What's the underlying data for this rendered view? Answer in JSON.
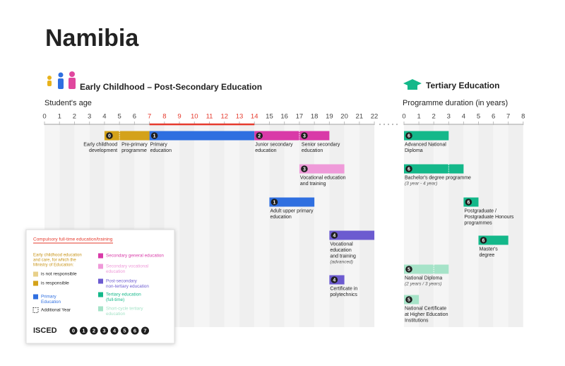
{
  "title": "Namibia",
  "left": {
    "header": "Early Childhood – Post-Secondary Education",
    "axis_label": "Student's age",
    "ages": [
      0,
      1,
      2,
      3,
      4,
      5,
      6,
      7,
      8,
      9,
      10,
      11,
      12,
      13,
      14,
      15,
      16,
      17,
      18,
      19,
      20,
      21,
      22
    ],
    "compulsory": [
      7,
      14
    ],
    "compulsory_color": "#e63b2e",
    "programmes": [
      {
        "isced": 0,
        "label": [
          "Early childhood",
          "development"
        ],
        "start": 4,
        "end": 5,
        "color": "#d4a21a"
      },
      {
        "label": [
          "Pre-primary",
          "programme"
        ],
        "start": 5,
        "end": 7,
        "color": "#d4a21a"
      },
      {
        "isced": 1,
        "label": [
          "Primary",
          "education"
        ],
        "start": 7,
        "end": 14,
        "color": "#2f6fe0"
      },
      {
        "isced": 2,
        "label": [
          "Junior secondary",
          "education"
        ],
        "start": 14,
        "end": 17,
        "color": "#d93aa8"
      },
      {
        "isced": 3,
        "label": [
          "Senior secondary",
          "education"
        ],
        "start": 17,
        "end": 19,
        "color": "#d93aa8"
      },
      {
        "isced": 3,
        "label": [
          "Vocational education",
          "and training"
        ],
        "start": 17,
        "end": 20,
        "color": "#ef9ad9"
      },
      {
        "isced": 1,
        "label": [
          "Adult upper primary",
          "education"
        ],
        "start": 15,
        "end": 18,
        "color": "#2f6fe0"
      },
      {
        "isced": 4,
        "label": [
          "Vocational",
          "education",
          "and training"
        ],
        "note": "(advanced)",
        "start": 19,
        "end": 22,
        "color": "#6c5bd0"
      },
      {
        "isced": 4,
        "label": [
          "Certificate in",
          "polytechnics"
        ],
        "start": 19,
        "end": 20,
        "color": "#6c5bd0"
      }
    ]
  },
  "right": {
    "header": "Tertiary Education",
    "axis_label": "Programme duration (in years)",
    "years": [
      0,
      1,
      2,
      3,
      4,
      5,
      6,
      7,
      8
    ],
    "programmes": [
      {
        "isced": 6,
        "label": [
          "Advanced National",
          "Diploma"
        ],
        "start": 0,
        "end": 3,
        "color": "#14b88a"
      },
      {
        "isced": 6,
        "label": [
          "Bachelor's degree programme"
        ],
        "note": "(3 year - 4 year)",
        "start": 0,
        "end": 4,
        "additional_year": 3,
        "color": "#14b88a"
      },
      {
        "isced": 6,
        "label": [
          "Postgraduate /",
          "Postgraduate Honours",
          "programmes"
        ],
        "start": 4,
        "end": 5,
        "color": "#14b88a"
      },
      {
        "isced": 6,
        "label": [
          "Master's",
          "degree"
        ],
        "start": 5,
        "end": 7,
        "color": "#14b88a"
      },
      {
        "isced": 5,
        "label": [
          "National Diploma"
        ],
        "note": "(2 years / 3 years)",
        "start": 0,
        "end": 3,
        "additional_year": 2,
        "color": "#a6e3c8"
      },
      {
        "isced": 5,
        "label": [
          "National Certificate",
          "at Higher Education",
          "Institutions"
        ],
        "start": 0,
        "end": 1,
        "color": "#a6e3c8"
      }
    ]
  },
  "legend": {
    "title": "Compulsory full-time education/training",
    "early_childhood": {
      "heading": [
        "Early childhood education",
        "and care, for which the",
        "Ministry of Education:"
      ],
      "items": [
        {
          "label": "is not responsible",
          "color": "#e8d08a"
        },
        {
          "label": "is responsible",
          "color": "#d4a21a"
        }
      ]
    },
    "items": [
      {
        "label": [
          "Primary",
          "Education"
        ],
        "color": "#2f6fe0"
      },
      {
        "label": [
          "Additional Year"
        ],
        "color": "dotted"
      },
      {
        "label": [
          "Secondary general education"
        ],
        "color": "#d93aa8"
      },
      {
        "label": [
          "Secondary vocational",
          "education"
        ],
        "color": "#ef9ad9"
      },
      {
        "label": [
          "Post-secondary",
          "non-tertiary education"
        ],
        "color": "#6c5bd0"
      },
      {
        "label": [
          "Tertiary education",
          "(full-time)"
        ],
        "color": "#14b88a"
      },
      {
        "label": [
          "Short-cycle tertiary",
          "education"
        ],
        "color": "#a6e3c8"
      }
    ],
    "isced_label": "ISCED",
    "isced_levels": [
      0,
      1,
      2,
      3,
      4,
      5,
      6,
      7
    ]
  }
}
